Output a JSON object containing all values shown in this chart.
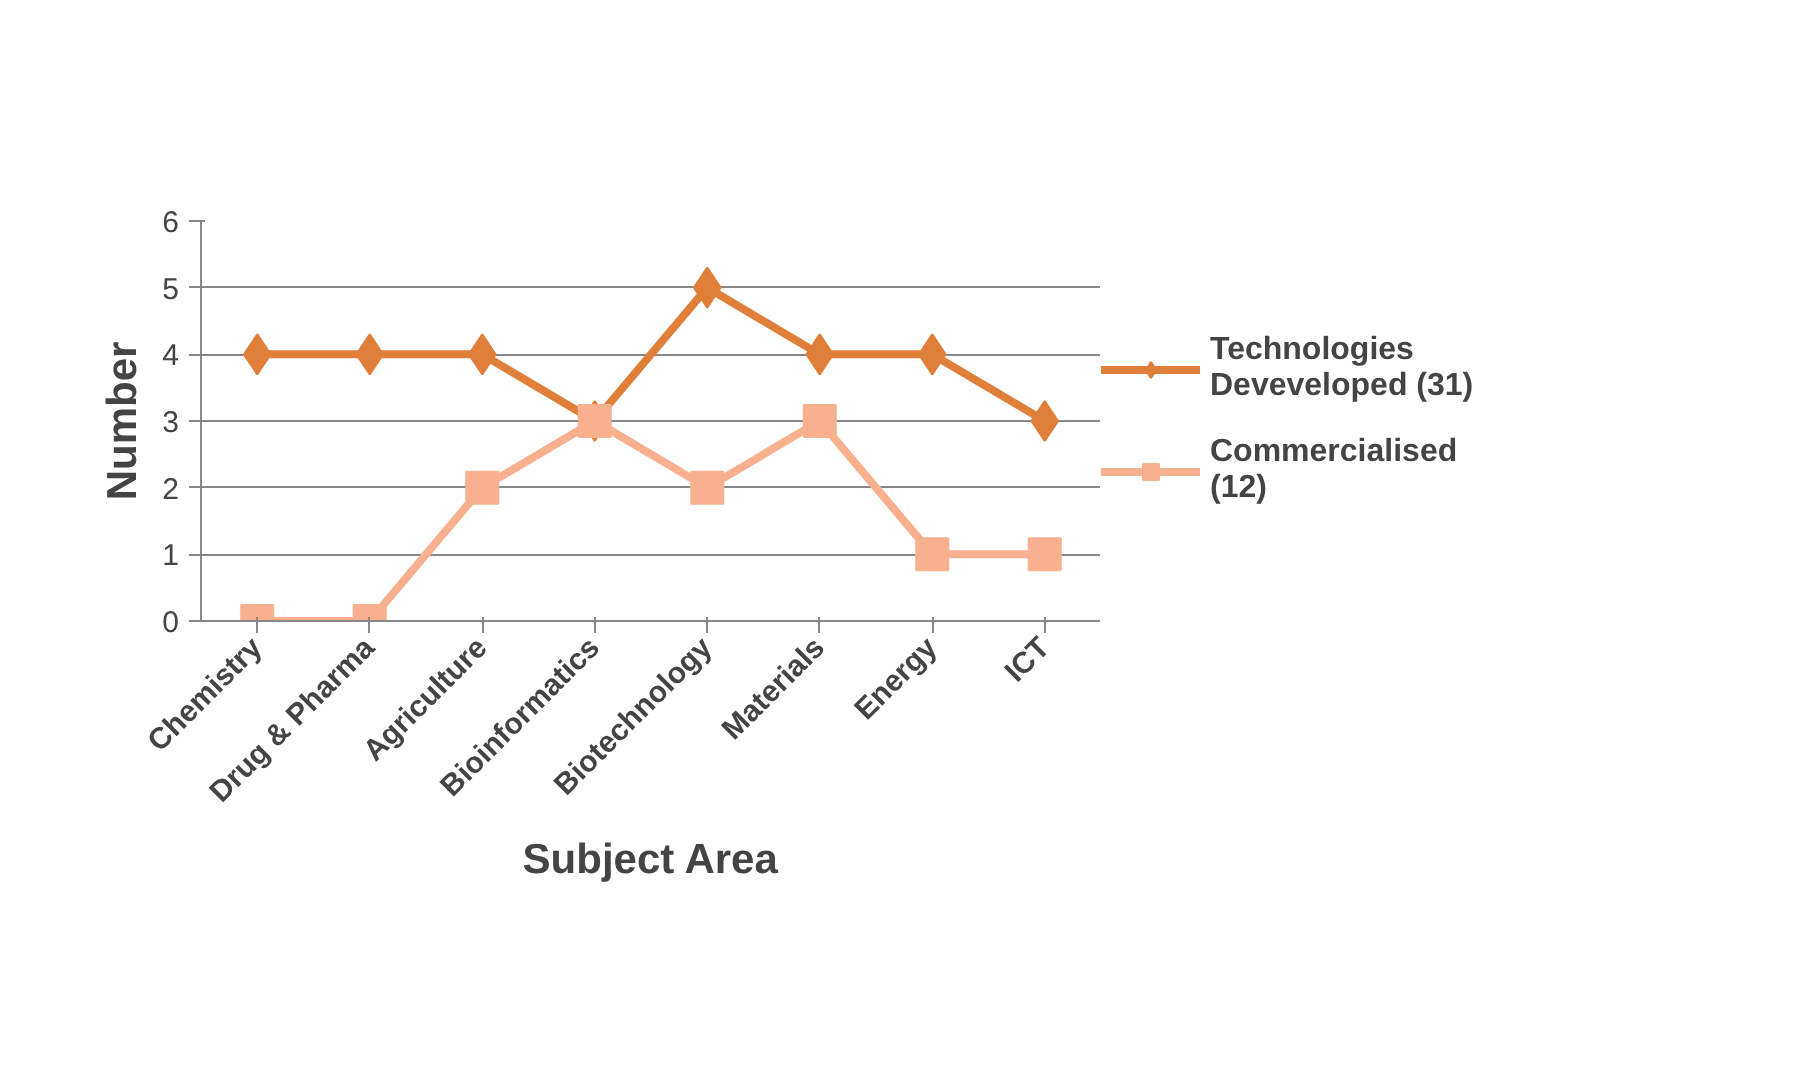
{
  "chart_data": {
    "type": "line",
    "xlabel": "Subject Area",
    "ylabel": "Number",
    "categories": [
      "Chemistry",
      "Drug & Pharma",
      "Agriculture",
      "Bioinformatics",
      "Biotechnology",
      "Materials",
      "Energy",
      "ICT"
    ],
    "series": [
      {
        "name": "Technologies Deveveloped (31)",
        "color": "#e07f3a",
        "marker": "diamond",
        "values": [
          4,
          4,
          4,
          3,
          5,
          4,
          4,
          3
        ]
      },
      {
        "name": "Commercialised (12)",
        "color": "#f8b08e",
        "marker": "square",
        "values": [
          0,
          0,
          2,
          3,
          2,
          3,
          1,
          1
        ]
      }
    ],
    "ylim": [
      0,
      6
    ],
    "yticks": [
      0,
      1,
      2,
      3,
      4,
      5,
      6
    ],
    "grid": "y",
    "legend": "right"
  }
}
